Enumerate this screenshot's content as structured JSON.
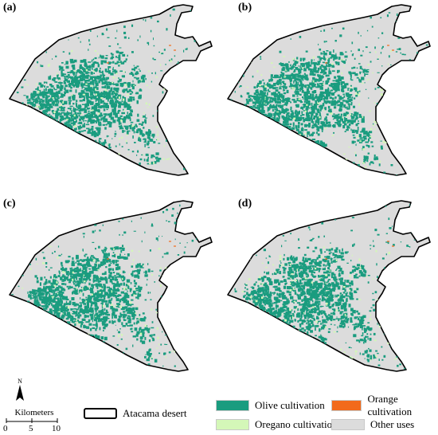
{
  "panels": [
    {
      "id": "a",
      "label": "(a)"
    },
    {
      "id": "b",
      "label": "(b)"
    },
    {
      "id": "c",
      "label": "(c)"
    },
    {
      "id": "d",
      "label": "(d)"
    }
  ],
  "north_arrow": {
    "letter": "N"
  },
  "scale_bar": {
    "title": "Kilometers",
    "ticks": [
      "0",
      "5",
      "10"
    ]
  },
  "legend": {
    "boundary": {
      "label": "Atacama desert"
    },
    "classes": [
      {
        "label": "Olive cultivation",
        "color": "#1a9c7f"
      },
      {
        "label": "Orange cultivation",
        "color": "#f26a1b"
      },
      {
        "label": "Oregano cultivation",
        "color": "#d4f7b8"
      },
      {
        "label": "Other uses",
        "color": "#dcdcdc"
      }
    ]
  },
  "colors": {
    "boundary": "#000000",
    "background": "#dcdcdc"
  }
}
